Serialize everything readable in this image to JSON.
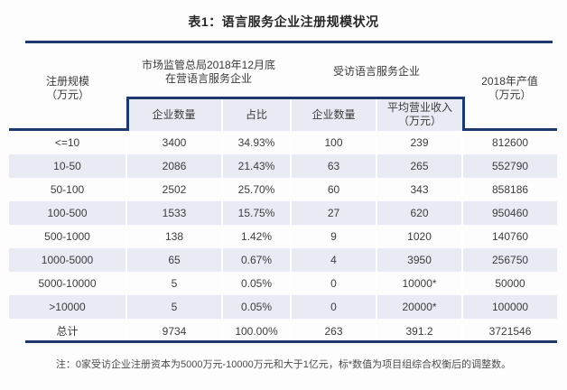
{
  "title": "表1：语言服务企业注册规模状况",
  "table": {
    "header": {
      "register_scale_line1": "注册规模",
      "register_scale_line2": "（万元）",
      "market_group_line1": "市场监管总局2018年12月底",
      "market_group_line2": "在营语言服务企业",
      "surveyed_group": "受访语言服务企业",
      "output_line1": "2018年产值",
      "output_line2": "（万元）",
      "sub_market_count": "企业数量",
      "sub_market_share": "占比",
      "sub_surveyed_count": "企业数量",
      "sub_avg_revenue_line1": "平均营业收入",
      "sub_avg_revenue_line2": "（万元）"
    },
    "rows": [
      {
        "scale": "<=10",
        "market_count": "3400",
        "market_share": "34.93%",
        "surveyed_count": "100",
        "avg_revenue": "239",
        "output_2018": "812600"
      },
      {
        "scale": "10-50",
        "market_count": "2086",
        "market_share": "21.43%",
        "surveyed_count": "63",
        "avg_revenue": "265",
        "output_2018": "552790"
      },
      {
        "scale": "50-100",
        "market_count": "2502",
        "market_share": "25.70%",
        "surveyed_count": "60",
        "avg_revenue": "343",
        "output_2018": "858186"
      },
      {
        "scale": "100-500",
        "market_count": "1533",
        "market_share": "15.75%",
        "surveyed_count": "27",
        "avg_revenue": "620",
        "output_2018": "950460"
      },
      {
        "scale": "500-1000",
        "market_count": "138",
        "market_share": "1.42%",
        "surveyed_count": "9",
        "avg_revenue": "1020",
        "output_2018": "140760"
      },
      {
        "scale": "1000-5000",
        "market_count": "65",
        "market_share": "0.67%",
        "surveyed_count": "4",
        "avg_revenue": "3950",
        "output_2018": "256750"
      },
      {
        "scale": "5000-10000",
        "market_count": "5",
        "market_share": "0.05%",
        "surveyed_count": "0",
        "avg_revenue": "10000*",
        "output_2018": "50000"
      },
      {
        "scale": ">10000",
        "market_count": "5",
        "market_share": "0.05%",
        "surveyed_count": "0",
        "avg_revenue": "20000*",
        "output_2018": "100000"
      }
    ],
    "total_row": {
      "scale": "总计",
      "market_count": "9734",
      "market_share": "100.00%",
      "surveyed_count": "263",
      "avg_revenue": "391.2",
      "output_2018": "3721546"
    }
  },
  "note": "注：0家受访企业注册资本为5000万元-10000万元和大于1亿元，标*数值为项目组综合权衡后的调整数。",
  "colors": {
    "accent_navy": "#1e3a6d",
    "row_stripe": "#e9ebf4",
    "subheader_bg": "#e9ebf4"
  }
}
